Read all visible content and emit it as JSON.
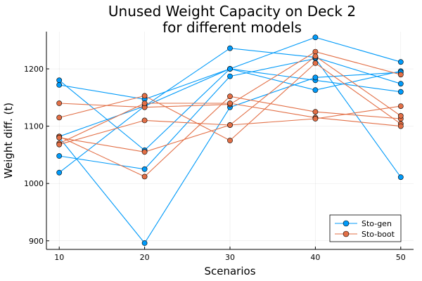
{
  "chart_data": {
    "type": "line",
    "title_line1": "Unused Weight Capacity on Deck 2",
    "title_line2": "for different models",
    "xlabel": "Scenarios",
    "ylabel": "Weight diff. (t)",
    "x": [
      10,
      20,
      30,
      40,
      50
    ],
    "xlim": [
      8.5,
      51.5
    ],
    "ylim": [
      885,
      1265
    ],
    "xticks": [
      10,
      20,
      30,
      40,
      50
    ],
    "yticks": [
      900,
      1000,
      1100,
      1200
    ],
    "grid": true,
    "legend_position": "bottom-right",
    "colors": {
      "sto_gen": "#009AF9",
      "sto_boot": "#E26F46"
    },
    "series": [
      {
        "name": "Sto-gen",
        "color": "#009AF9",
        "lines": [
          [
            1180,
            1058,
            1200,
            1255,
            1212
          ],
          [
            1172,
            1147,
            1200,
            1180,
            1160
          ],
          [
            1082,
            1135,
            1200,
            1163,
            1196
          ],
          [
            1048,
            1025,
            1187,
            1218,
            1011
          ],
          [
            1019,
            1135,
            1236,
            1220,
            1174
          ],
          [
            1080,
            896,
            1133,
            1185,
            1194
          ]
        ]
      },
      {
        "name": "Sto-boot",
        "color": "#E26F46",
        "lines": [
          [
            1140,
            1133,
            1138,
            1230,
            1190
          ],
          [
            1115,
            1153,
            1075,
            1210,
            1104
          ],
          [
            1082,
            1012,
            1152,
            1125,
            1113
          ],
          [
            1080,
            1055,
            1102,
            1222,
            1118
          ],
          [
            1070,
            1140,
            1140,
            1115,
            1100
          ],
          [
            1068,
            1110,
            1102,
            1113,
            1135
          ]
        ]
      }
    ]
  }
}
